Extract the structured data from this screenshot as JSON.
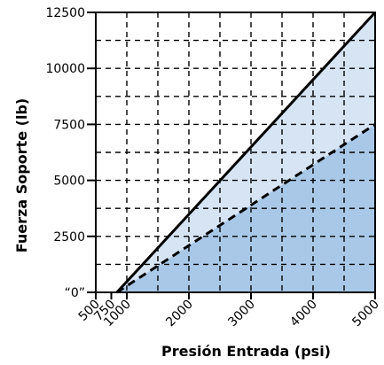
{
  "chart_data": {
    "type": "area",
    "title": "",
    "xlabel": "Presión Entrada (psi)",
    "ylabel": "Fuerza Soporte (lb)",
    "xlim": [
      500,
      5000
    ],
    "ylim": [
      0,
      12500
    ],
    "x_ticks": [
      500,
      750,
      1000,
      2000,
      3000,
      4000,
      5000
    ],
    "x_tick_labels": [
      "500",
      "750",
      "1000",
      "2000",
      "3000",
      "4000",
      "5000"
    ],
    "y_ticks": [
      0,
      2500,
      5000,
      7500,
      10000,
      12500
    ],
    "y_tick_labels": [
      "“0”",
      "2500",
      "5000",
      "7500",
      "10000",
      "12500"
    ],
    "grid": true,
    "grid_style": "dashed",
    "grid_x": [
      1000,
      1500,
      2000,
      2500,
      3000,
      3500,
      4000,
      4500
    ],
    "grid_y": [
      1250,
      2500,
      3750,
      5000,
      6250,
      7500,
      8750,
      10000,
      11250
    ],
    "series": [
      {
        "line_style": "solid",
        "fill": "#d6e4f4",
        "x": [
          840,
          5000
        ],
        "y": [
          0,
          12500
        ]
      },
      {
        "line_style": "dashed",
        "fill": "#a9c8e8",
        "x": [
          840,
          5000
        ],
        "y": [
          0,
          7500
        ]
      }
    ]
  }
}
